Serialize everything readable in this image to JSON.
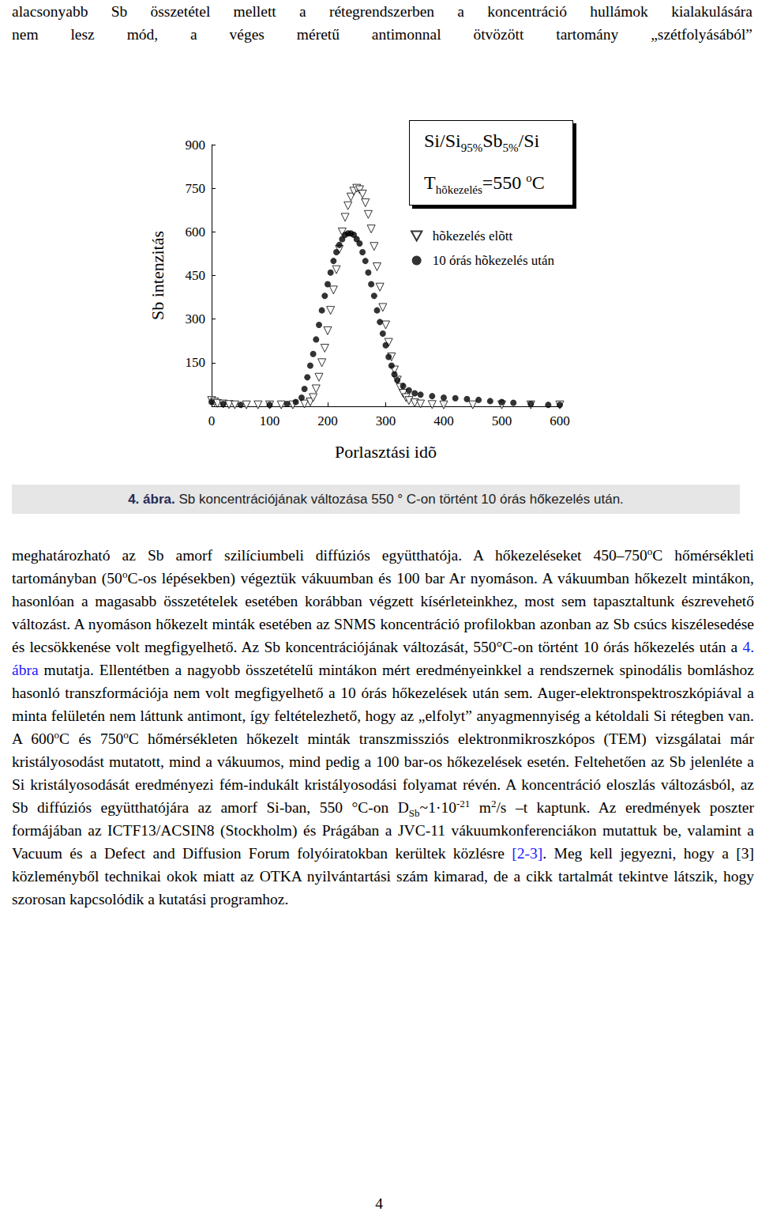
{
  "top_lines": [
    "alacsonyabb Sb összetétel mellett a rétegrendszerben a koncentráció hullámok kialakulására",
    "nem lesz mód, a véges méretű antimonnal ötvözött tartomány „szétfolyásából”"
  ],
  "chart_data": {
    "type": "scatter",
    "x_label": "Porlasztási idõ",
    "y_label": "Sb intenzitás",
    "annotation_lines": [
      [
        "Si/Si",
        {
          "sub": "95%"
        },
        "Sb",
        {
          "sub": "5%"
        },
        "/Si"
      ],
      [
        "T",
        {
          "sub": "hõkezelés"
        },
        "=550 ",
        {
          "sup": "o"
        },
        "C"
      ]
    ],
    "xlim": [
      0,
      600
    ],
    "xticks": [
      0,
      100,
      200,
      300,
      400,
      500,
      600
    ],
    "ylim": [
      0,
      900
    ],
    "yticks": [
      150,
      300,
      450,
      600,
      750,
      900
    ],
    "grid": false,
    "legend": "upper right",
    "series": [
      {
        "name": "hõkezelés elõtt",
        "marker": "triangle_down_open",
        "color": "#000000",
        "x": [
          0,
          5,
          10,
          20,
          30,
          40,
          60,
          80,
          100,
          120,
          140,
          160,
          170,
          175,
          180,
          185,
          190,
          195,
          200,
          205,
          210,
          215,
          220,
          225,
          230,
          235,
          240,
          245,
          250,
          255,
          260,
          265,
          270,
          275,
          280,
          285,
          290,
          295,
          300,
          305,
          310,
          315,
          320,
          325,
          330,
          335,
          340,
          350,
          360,
          380,
          400,
          450,
          500,
          550,
          600
        ],
        "values": [
          20,
          15,
          10,
          8,
          6,
          5,
          5,
          5,
          5,
          5,
          5,
          8,
          15,
          30,
          60,
          100,
          150,
          200,
          260,
          330,
          400,
          470,
          540,
          600,
          650,
          690,
          720,
          740,
          750,
          745,
          730,
          700,
          660,
          610,
          550,
          480,
          410,
          340,
          280,
          220,
          170,
          125,
          90,
          65,
          45,
          30,
          20,
          12,
          8,
          6,
          5,
          5,
          5,
          5,
          5
        ]
      },
      {
        "name": "10 órás hõkezelés után",
        "marker": "circle",
        "color": "#000000",
        "x": [
          0,
          20,
          50,
          100,
          130,
          145,
          155,
          160,
          165,
          170,
          175,
          180,
          185,
          190,
          195,
          200,
          205,
          210,
          215,
          220,
          225,
          230,
          235,
          240,
          245,
          250,
          255,
          260,
          265,
          270,
          275,
          280,
          285,
          290,
          295,
          300,
          305,
          310,
          315,
          320,
          330,
          340,
          350,
          360,
          380,
          400,
          420,
          440,
          460,
          480,
          500,
          520,
          550,
          580,
          600
        ],
        "values": [
          15,
          8,
          5,
          5,
          8,
          15,
          30,
          60,
          100,
          140,
          180,
          230,
          280,
          330,
          380,
          420,
          460,
          500,
          530,
          555,
          575,
          590,
          595,
          595,
          590,
          575,
          560,
          530,
          500,
          460,
          420,
          380,
          330,
          290,
          250,
          210,
          170,
          140,
          110,
          90,
          70,
          55,
          45,
          40,
          35,
          30,
          28,
          25,
          22,
          18,
          15,
          12,
          8,
          5,
          5
        ]
      }
    ]
  },
  "caption": {
    "label": "4. ábra.",
    "text": " Sb koncentrációjának változása 550 ° C-on történt 10 órás hőkezelés után."
  },
  "body": [
    "meghatározható az Sb amorf szilíciumbeli diffúziós együtthatója. A hőkezeléseket 450–750",
    {
      "sup": "o"
    },
    "C hőmérsékleti tartományban (50",
    {
      "sup": "o"
    },
    "C-os lépésekben) végeztük vákuumban és 100 bar Ar nyomáson. A vákuumban hőkezelt mintákon, hasonlóan a magasabb összetételek esetében korábban végzett kísérleteinkhez, most sem tapasztaltunk észrevehető változást. A nyomáson hőkezelt minták esetében az SNMS koncentráció profilokban azonban az Sb csúcs kiszélesedése és lecsökkenése volt megfigyelhető. Az Sb koncentrációjának változását, 550°C-on történt 10 órás hőkezelés után a ",
    {
      "link": "4. ábra"
    },
    " mutatja. Ellentétben a nagyobb összetételű mintákon mért eredményeinkkel a rendszernek spinodális bomláshoz hasonló transzformációja nem volt megfigyelhető a 10 órás hőkezelések után sem. Auger-elektronspektroszkópiával a minta felületén nem láttunk antimont, így feltételezhető, hogy az „elfolyt” anyagmennyiség a kétoldali Si rétegben van. A 600",
    {
      "sup": "o"
    },
    "C és 750",
    {
      "sup": "o"
    },
    "C hőmérsékleten hőkezelt minták transzmissziós elektronmikroszkópos (TEM) vizsgálatai már kristályosodást mutatott, mind a vákuumos, mind pedig a 100 bar-os hőkezelések esetén. Feltehetően az Sb jelenléte a Si kristályosodását eredményezi fém-indukált kristályosodási folyamat révén. A koncentráció eloszlás változásból, az Sb diffúziós együtthatójára az amorf Si-ban, 550 °C-on D",
    {
      "sub": "Sb"
    },
    "~1·10",
    {
      "sup": "-21"
    },
    " m",
    {
      "sup": "2"
    },
    "/s –t kaptunk. Az eredmények poszter formájában az ICTF13/ACSIN8 (Stockholm) és Prágában a JVC-11 vákuumkonferenciákon mutattuk be, valamint a Vacuum és a Defect and Diffusion Forum folyóiratokban kerültek közlésre ",
    {
      "link": "[2-3]"
    },
    ". Meg kell jegyezni, hogy a [3] közleményből technikai okok miatt az OTKA nyilvántartási szám kimarad, de a cikk tartalmát tekintve látszik, hogy szorosan kapcsolódik a kutatási programhoz."
  ],
  "page_number": "4"
}
